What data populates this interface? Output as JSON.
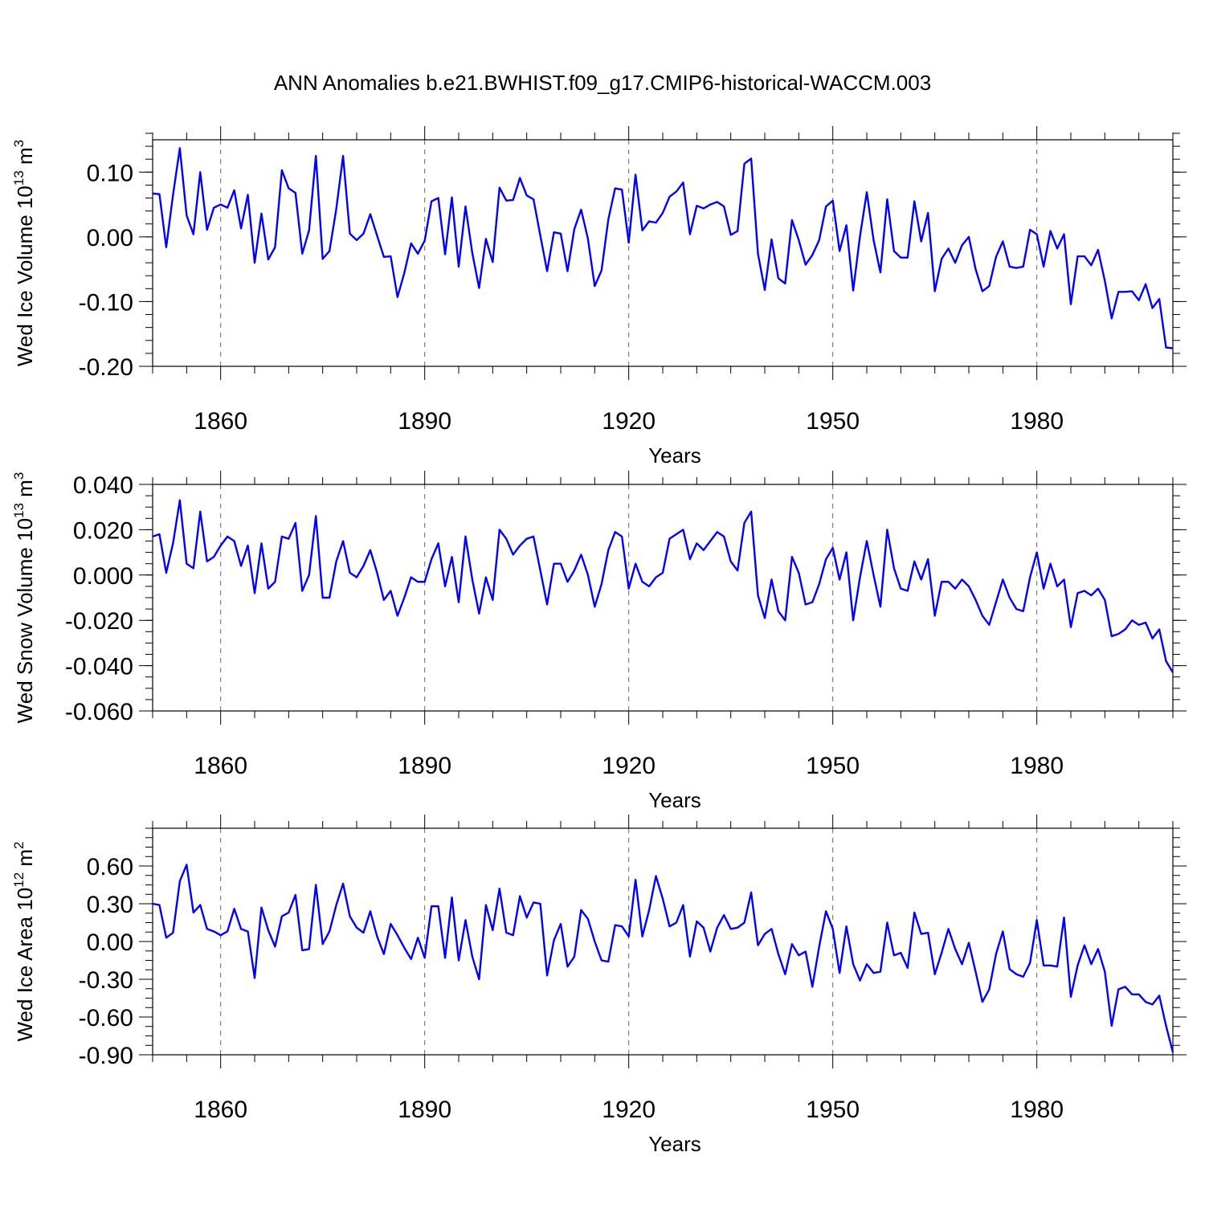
{
  "title": "ANN Anomalies b.e21.BWHIST.f09_g17.CMIP6-historical-WACCM.003",
  "chart_data": [
    {
      "type": "line",
      "ylabel_main": "Wed Ice Volume 10",
      "ylabel_exp": "13",
      "ylabel_unit": " m",
      "ylabel_unit_exp": "3",
      "xlabel": "Years",
      "xlim": [
        1850,
        2000
      ],
      "ylim": [
        -0.2,
        0.15
      ],
      "yticks": [
        -0.2,
        -0.1,
        0.0,
        0.1
      ],
      "ytick_labels": [
        "-0.20",
        "-0.10",
        "0.00",
        "0.10"
      ],
      "yminor_step": 0.02,
      "xticks": [
        1860,
        1890,
        1920,
        1950,
        1980
      ],
      "xtick_labels": [
        "1860",
        "1890",
        "1920",
        "1950",
        "1980"
      ],
      "x_start": 1850,
      "line_color": "#0000ff",
      "values": [
        0.067,
        0.066,
        -0.016,
        0.065,
        0.137,
        0.033,
        0.004,
        0.1,
        0.011,
        0.045,
        0.05,
        0.045,
        0.072,
        0.013,
        0.065,
        -0.04,
        0.036,
        -0.035,
        -0.016,
        0.103,
        0.075,
        0.068,
        -0.026,
        0.01,
        0.125,
        -0.034,
        -0.022,
        0.043,
        0.125,
        0.005,
        -0.005,
        0.005,
        0.035,
        0.002,
        -0.031,
        -0.03,
        -0.093,
        -0.056,
        -0.01,
        -0.026,
        -0.006,
        0.055,
        0.06,
        -0.027,
        0.061,
        -0.046,
        0.047,
        -0.025,
        -0.079,
        -0.003,
        -0.039,
        0.076,
        0.056,
        0.057,
        0.091,
        0.064,
        0.058,
        0.002,
        -0.053,
        0.007,
        0.005,
        -0.053,
        0.012,
        0.042,
        -0.003,
        -0.076,
        -0.052,
        0.027,
        0.075,
        0.073,
        -0.009,
        0.096,
        0.01,
        0.024,
        0.022,
        0.037,
        0.062,
        0.07,
        0.084,
        0.004,
        0.048,
        0.044,
        0.05,
        0.054,
        0.047,
        0.003,
        0.009,
        0.113,
        0.121,
        -0.026,
        -0.082,
        -0.004,
        -0.064,
        -0.072,
        0.026,
        -0.005,
        -0.043,
        -0.028,
        -0.005,
        0.047,
        0.056,
        -0.022,
        0.018,
        -0.083,
        0.001,
        0.069,
        -0.005,
        -0.055,
        0.058,
        -0.022,
        -0.032,
        -0.032,
        0.055,
        -0.007,
        0.037,
        -0.084,
        -0.034,
        -0.018,
        -0.04,
        -0.013,
        0.0,
        -0.05,
        -0.084,
        -0.076,
        -0.031,
        -0.007,
        -0.046,
        -0.048,
        -0.046,
        0.011,
        0.004,
        -0.046,
        0.009,
        -0.018,
        0.004,
        -0.104,
        -0.03,
        -0.03,
        -0.044,
        -0.02,
        -0.068,
        -0.126,
        -0.085,
        -0.085,
        -0.084,
        -0.098,
        -0.073,
        -0.11,
        -0.096,
        -0.171,
        -0.172
      ]
    },
    {
      "type": "line",
      "ylabel_main": "Wed Snow Volume 10",
      "ylabel_exp": "13",
      "ylabel_unit": " m",
      "ylabel_unit_exp": "3",
      "xlabel": "Years",
      "xlim": [
        1850,
        2000
      ],
      "ylim": [
        -0.06,
        0.04
      ],
      "yticks": [
        -0.06,
        -0.04,
        -0.02,
        0.0,
        0.02,
        0.04
      ],
      "ytick_labels": [
        "-0.060",
        "-0.040",
        "-0.020",
        "0.000",
        "0.020",
        "0.040"
      ],
      "yminor_step": 0.005,
      "xticks": [
        1860,
        1890,
        1920,
        1950,
        1980
      ],
      "xtick_labels": [
        "1860",
        "1890",
        "1920",
        "1950",
        "1980"
      ],
      "x_start": 1850,
      "line_color": "#0000ff",
      "values": [
        0.017,
        0.018,
        0.001,
        0.014,
        0.033,
        0.005,
        0.003,
        0.028,
        0.006,
        0.008,
        0.013,
        0.017,
        0.015,
        0.004,
        0.013,
        -0.008,
        0.014,
        -0.006,
        -0.003,
        0.017,
        0.016,
        0.023,
        -0.007,
        0.0,
        0.026,
        -0.01,
        -0.01,
        0.006,
        0.015,
        0.001,
        -0.001,
        0.004,
        0.011,
        0.001,
        -0.011,
        -0.007,
        -0.018,
        -0.01,
        -0.001,
        -0.003,
        -0.003,
        0.007,
        0.014,
        -0.005,
        0.008,
        -0.012,
        0.017,
        -0.002,
        -0.017,
        -0.001,
        -0.011,
        0.02,
        0.016,
        0.009,
        0.013,
        0.016,
        0.017,
        0.002,
        -0.013,
        0.005,
        0.005,
        -0.003,
        0.002,
        0.009,
        0.0,
        -0.014,
        -0.004,
        0.011,
        0.019,
        0.017,
        -0.006,
        0.005,
        -0.003,
        -0.005,
        -0.001,
        0.001,
        0.016,
        0.018,
        0.02,
        0.007,
        0.014,
        0.011,
        0.015,
        0.019,
        0.017,
        0.006,
        0.002,
        0.023,
        0.028,
        -0.009,
        -0.019,
        -0.002,
        -0.016,
        -0.02,
        0.008,
        0.001,
        -0.013,
        -0.012,
        -0.004,
        0.007,
        0.012,
        -0.002,
        0.01,
        -0.02,
        -0.001,
        0.015,
        0.0,
        -0.014,
        0.02,
        0.003,
        -0.006,
        -0.007,
        0.006,
        -0.002,
        0.007,
        -0.018,
        -0.003,
        -0.003,
        -0.006,
        -0.002,
        -0.005,
        -0.011,
        -0.018,
        -0.022,
        -0.012,
        -0.002,
        -0.01,
        -0.015,
        -0.016,
        -0.001,
        0.01,
        -0.006,
        0.005,
        -0.005,
        -0.002,
        -0.023,
        -0.008,
        -0.007,
        -0.009,
        -0.006,
        -0.011,
        -0.027,
        -0.026,
        -0.024,
        -0.02,
        -0.022,
        -0.021,
        -0.028,
        -0.024,
        -0.038,
        -0.043
      ]
    },
    {
      "type": "line",
      "ylabel_main": "Wed Ice Area 10",
      "ylabel_exp": "12",
      "ylabel_unit": " m",
      "ylabel_unit_exp": "2",
      "xlabel": "Years",
      "xlim": [
        1850,
        2000
      ],
      "ylim": [
        -0.9,
        0.9
      ],
      "yticks": [
        -0.9,
        -0.6,
        -0.3,
        0.0,
        0.3,
        0.6
      ],
      "ytick_labels": [
        "-0.90",
        "-0.60",
        "-0.30",
        "0.00",
        "0.30",
        "0.60"
      ],
      "yminor_step": 0.075,
      "xticks": [
        1860,
        1890,
        1920,
        1950,
        1980
      ],
      "xtick_labels": [
        "1860",
        "1890",
        "1920",
        "1950",
        "1980"
      ],
      "x_start": 1850,
      "line_color": "#0000ff",
      "values": [
        0.3,
        0.29,
        0.03,
        0.07,
        0.48,
        0.61,
        0.23,
        0.29,
        0.1,
        0.08,
        0.05,
        0.08,
        0.26,
        0.1,
        0.08,
        -0.29,
        0.27,
        0.09,
        -0.04,
        0.2,
        0.23,
        0.37,
        -0.07,
        -0.06,
        0.45,
        -0.02,
        0.08,
        0.29,
        0.46,
        0.2,
        0.11,
        0.07,
        0.24,
        0.04,
        -0.1,
        0.14,
        0.05,
        -0.05,
        -0.14,
        0.03,
        -0.13,
        0.28,
        0.28,
        -0.13,
        0.35,
        -0.15,
        0.17,
        -0.12,
        -0.3,
        0.29,
        0.09,
        0.42,
        0.07,
        0.05,
        0.36,
        0.19,
        0.31,
        0.3,
        -0.27,
        0.01,
        0.14,
        -0.2,
        -0.12,
        0.25,
        0.18,
        0.0,
        -0.15,
        -0.16,
        0.13,
        0.12,
        0.04,
        0.49,
        0.04,
        0.25,
        0.52,
        0.34,
        0.12,
        0.15,
        0.29,
        -0.12,
        0.16,
        0.11,
        -0.08,
        0.11,
        0.21,
        0.1,
        0.11,
        0.15,
        0.39,
        -0.03,
        0.06,
        0.1,
        -0.1,
        -0.26,
        -0.02,
        -0.11,
        -0.08,
        -0.36,
        -0.04,
        0.24,
        0.1,
        -0.25,
        0.12,
        -0.18,
        -0.31,
        -0.18,
        -0.25,
        -0.24,
        0.15,
        -0.11,
        -0.09,
        -0.21,
        0.23,
        0.06,
        0.07,
        -0.26,
        -0.09,
        0.1,
        -0.06,
        -0.18,
        -0.01,
        -0.24,
        -0.48,
        -0.38,
        -0.1,
        0.08,
        -0.22,
        -0.26,
        -0.28,
        -0.17,
        0.17,
        -0.19,
        -0.19,
        -0.2,
        0.19,
        -0.44,
        -0.19,
        -0.03,
        -0.18,
        -0.06,
        -0.24,
        -0.67,
        -0.38,
        -0.36,
        -0.42,
        -0.42,
        -0.48,
        -0.5,
        -0.43,
        -0.67,
        -0.88
      ]
    }
  ]
}
